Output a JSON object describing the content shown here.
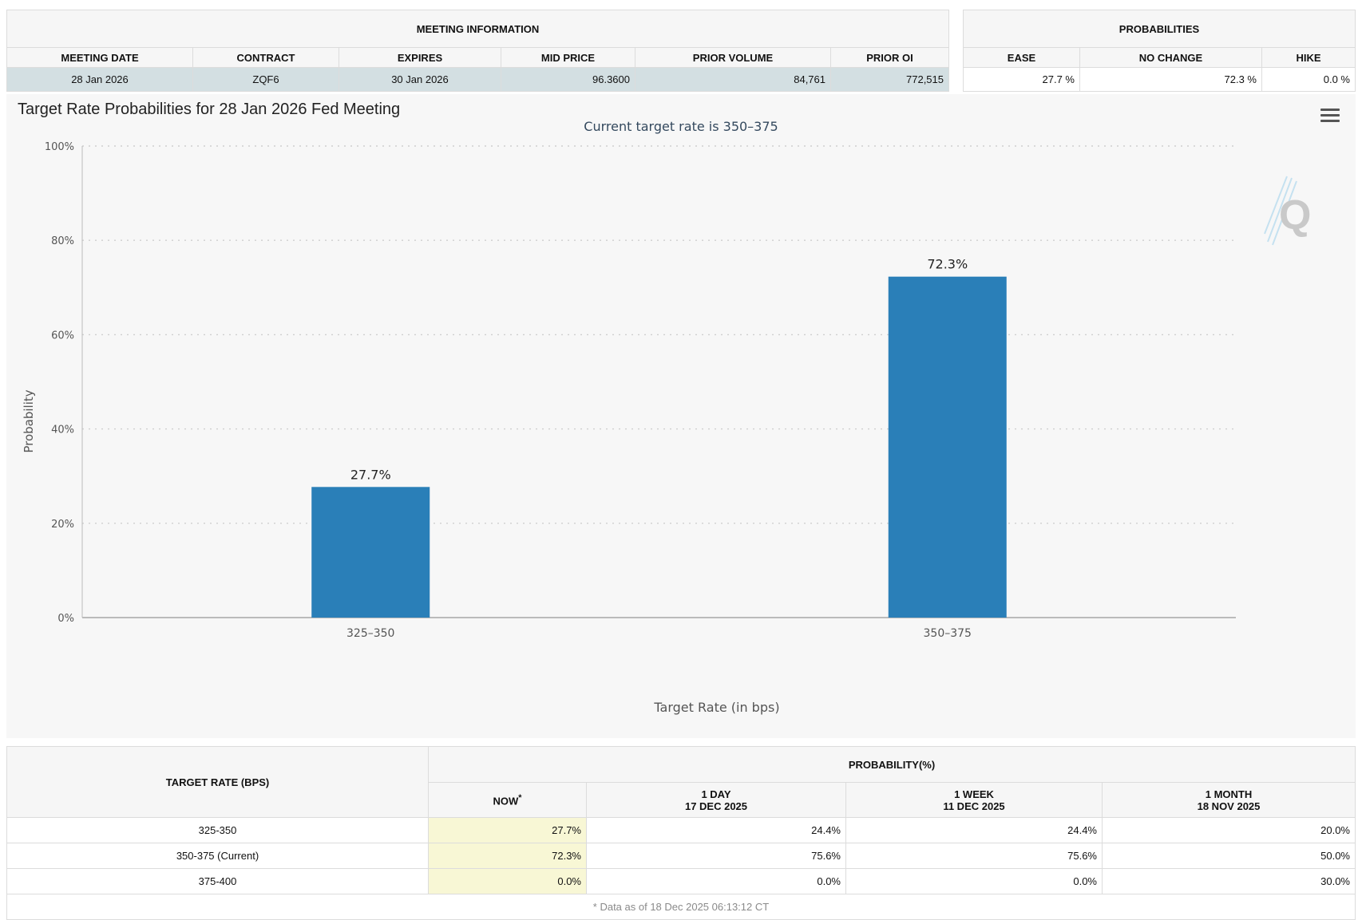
{
  "meeting_info": {
    "section_title": "MEETING INFORMATION",
    "columns": [
      "MEETING DATE",
      "CONTRACT",
      "EXPIRES",
      "MID PRICE",
      "PRIOR VOLUME",
      "PRIOR OI"
    ],
    "row": [
      "28 Jan 2026",
      "ZQF6",
      "30 Jan 2026",
      "96.3600",
      "84,761",
      "772,515"
    ]
  },
  "probabilities": {
    "section_title": "PROBABILITIES",
    "columns": [
      "EASE",
      "NO CHANGE",
      "HIKE"
    ],
    "row": [
      "27.7 %",
      "72.3 %",
      "0.0 %"
    ]
  },
  "chart_panel": {
    "title": "Target Rate Probabilities for 28 Jan 2026 Fed Meeting",
    "menu_icon": "hamburger-menu-icon",
    "logo_icon": "q-logo-icon"
  },
  "chart_data": {
    "type": "bar",
    "title": "Target Rate Probabilities for 28 Jan 2026 Fed Meeting",
    "subtitle": "Current target rate is 350–375",
    "xlabel": "Target Rate (in bps)",
    "ylabel": "Probability",
    "categories": [
      "325–350",
      "350–375"
    ],
    "values": [
      27.7,
      72.3
    ],
    "data_labels": [
      "27.7%",
      "72.3%"
    ],
    "ylim": [
      0,
      100
    ],
    "yticks": [
      0,
      20,
      40,
      60,
      80,
      100
    ],
    "ytick_labels": [
      "0%",
      "20%",
      "40%",
      "60%",
      "80%",
      "100%"
    ],
    "bar_color": "#2a7fb8",
    "grid": true
  },
  "history_table": {
    "target_header": "TARGET RATE (BPS)",
    "prob_header": "PROBABILITY(%)",
    "columns": [
      {
        "line1": "NOW",
        "line2": "",
        "star": "*"
      },
      {
        "line1": "1 DAY",
        "line2": "17 DEC 2025",
        "star": ""
      },
      {
        "line1": "1 WEEK",
        "line2": "11 DEC 2025",
        "star": ""
      },
      {
        "line1": "1 MONTH",
        "line2": "18 NOV 2025",
        "star": ""
      }
    ],
    "rows": [
      {
        "rate": "325-350",
        "values": [
          "27.7%",
          "24.4%",
          "24.4%",
          "20.0%"
        ]
      },
      {
        "rate": "350-375 (Current)",
        "values": [
          "72.3%",
          "75.6%",
          "75.6%",
          "50.0%"
        ]
      },
      {
        "rate": "375-400",
        "values": [
          "0.0%",
          "0.0%",
          "0.0%",
          "30.0%"
        ]
      }
    ],
    "footnote": "* Data as of 18 Dec 2025 06:13:12 CT"
  },
  "colors": {
    "meeting_row_bg": "#d3dfe2",
    "now_col_bg": "#f8f7d5",
    "chart_bg": "#f7f7f7",
    "subtitle_color": "#34495e"
  }
}
